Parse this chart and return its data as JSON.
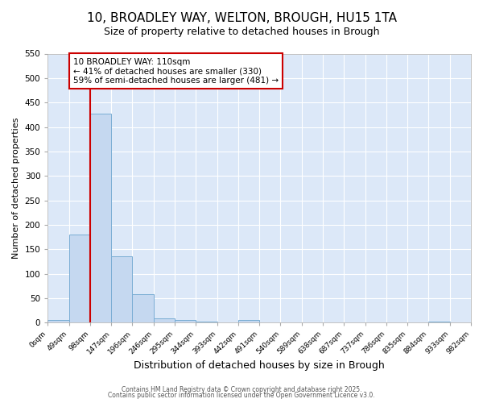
{
  "title_line1": "10, BROADLEY WAY, WELTON, BROUGH, HU15 1TA",
  "title_line2": "Size of property relative to detached houses in Brough",
  "xlabel": "Distribution of detached houses by size in Brough",
  "ylabel": "Number of detached properties",
  "bin_edges": [
    "0sqm",
    "49sqm",
    "98sqm",
    "147sqm",
    "196sqm",
    "246sqm",
    "295sqm",
    "344sqm",
    "393sqm",
    "442sqm",
    "491sqm",
    "540sqm",
    "589sqm",
    "638sqm",
    "687sqm",
    "737sqm",
    "786sqm",
    "835sqm",
    "884sqm",
    "933sqm",
    "982sqm"
  ],
  "values": [
    5,
    180,
    428,
    135,
    58,
    8,
    6,
    2,
    0,
    5,
    0,
    0,
    0,
    0,
    0,
    0,
    0,
    0,
    2,
    0
  ],
  "bar_color": "#c5d8f0",
  "bar_edgecolor": "#7aadd4",
  "redline_bin_index": 2,
  "annotation_text": "10 BROADLEY WAY: 110sqm\n← 41% of detached houses are smaller (330)\n59% of semi-detached houses are larger (481) →",
  "annotation_box_facecolor": "#ffffff",
  "annotation_border_color": "#cc0000",
  "ylim": [
    0,
    550
  ],
  "yticks": [
    0,
    50,
    100,
    150,
    200,
    250,
    300,
    350,
    400,
    450,
    500,
    550
  ],
  "plot_bg_color": "#dce8f8",
  "fig_bg_color": "#ffffff",
  "grid_color": "#ffffff",
  "footer_line1": "Contains HM Land Registry data © Crown copyright and database right 2025.",
  "footer_line2": "Contains public sector information licensed under the Open Government Licence v3.0."
}
